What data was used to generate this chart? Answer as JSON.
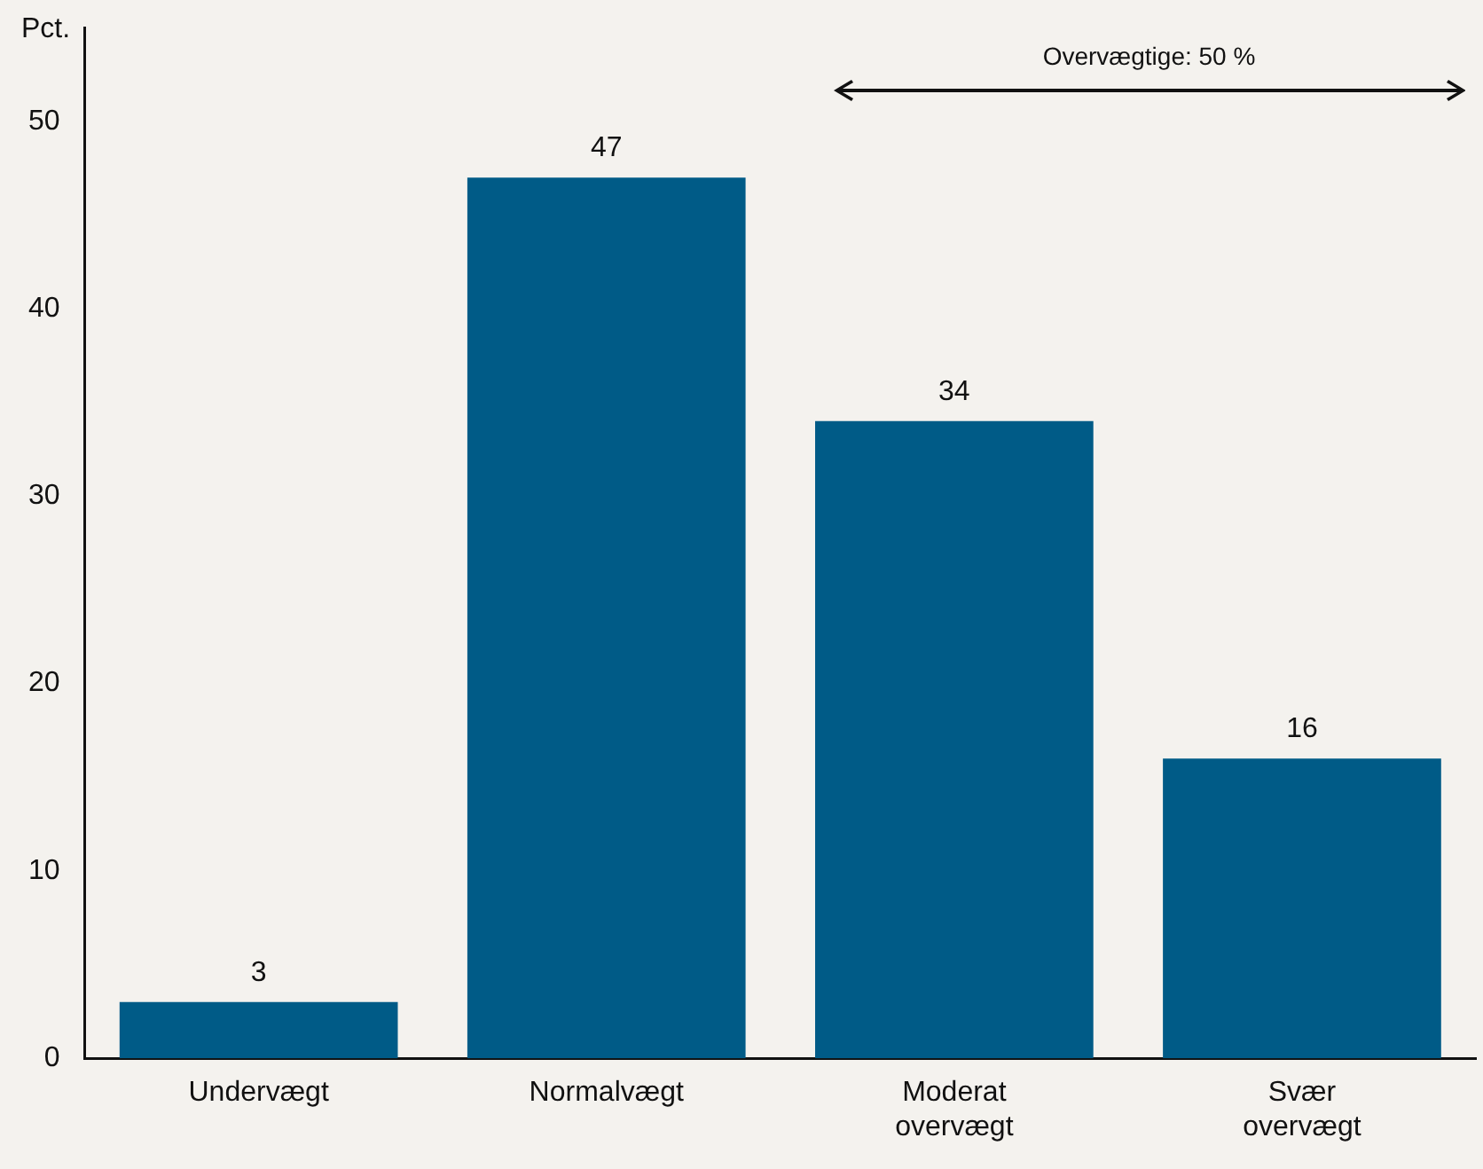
{
  "chart_data": {
    "type": "bar",
    "ylabel": "Pct.",
    "categories": [
      "Undervægt",
      "Normalvægt",
      "Moderat overvægt",
      "Svær overvægt"
    ],
    "values": [
      3,
      47,
      34,
      16
    ],
    "color": "#005b87",
    "ylim": [
      0,
      55
    ],
    "yticks": [
      0,
      10,
      20,
      30,
      40,
      50
    ],
    "grid": false,
    "legend": false,
    "data_labels": true,
    "annotations": [
      "Overvægtige: 50 %"
    ]
  }
}
